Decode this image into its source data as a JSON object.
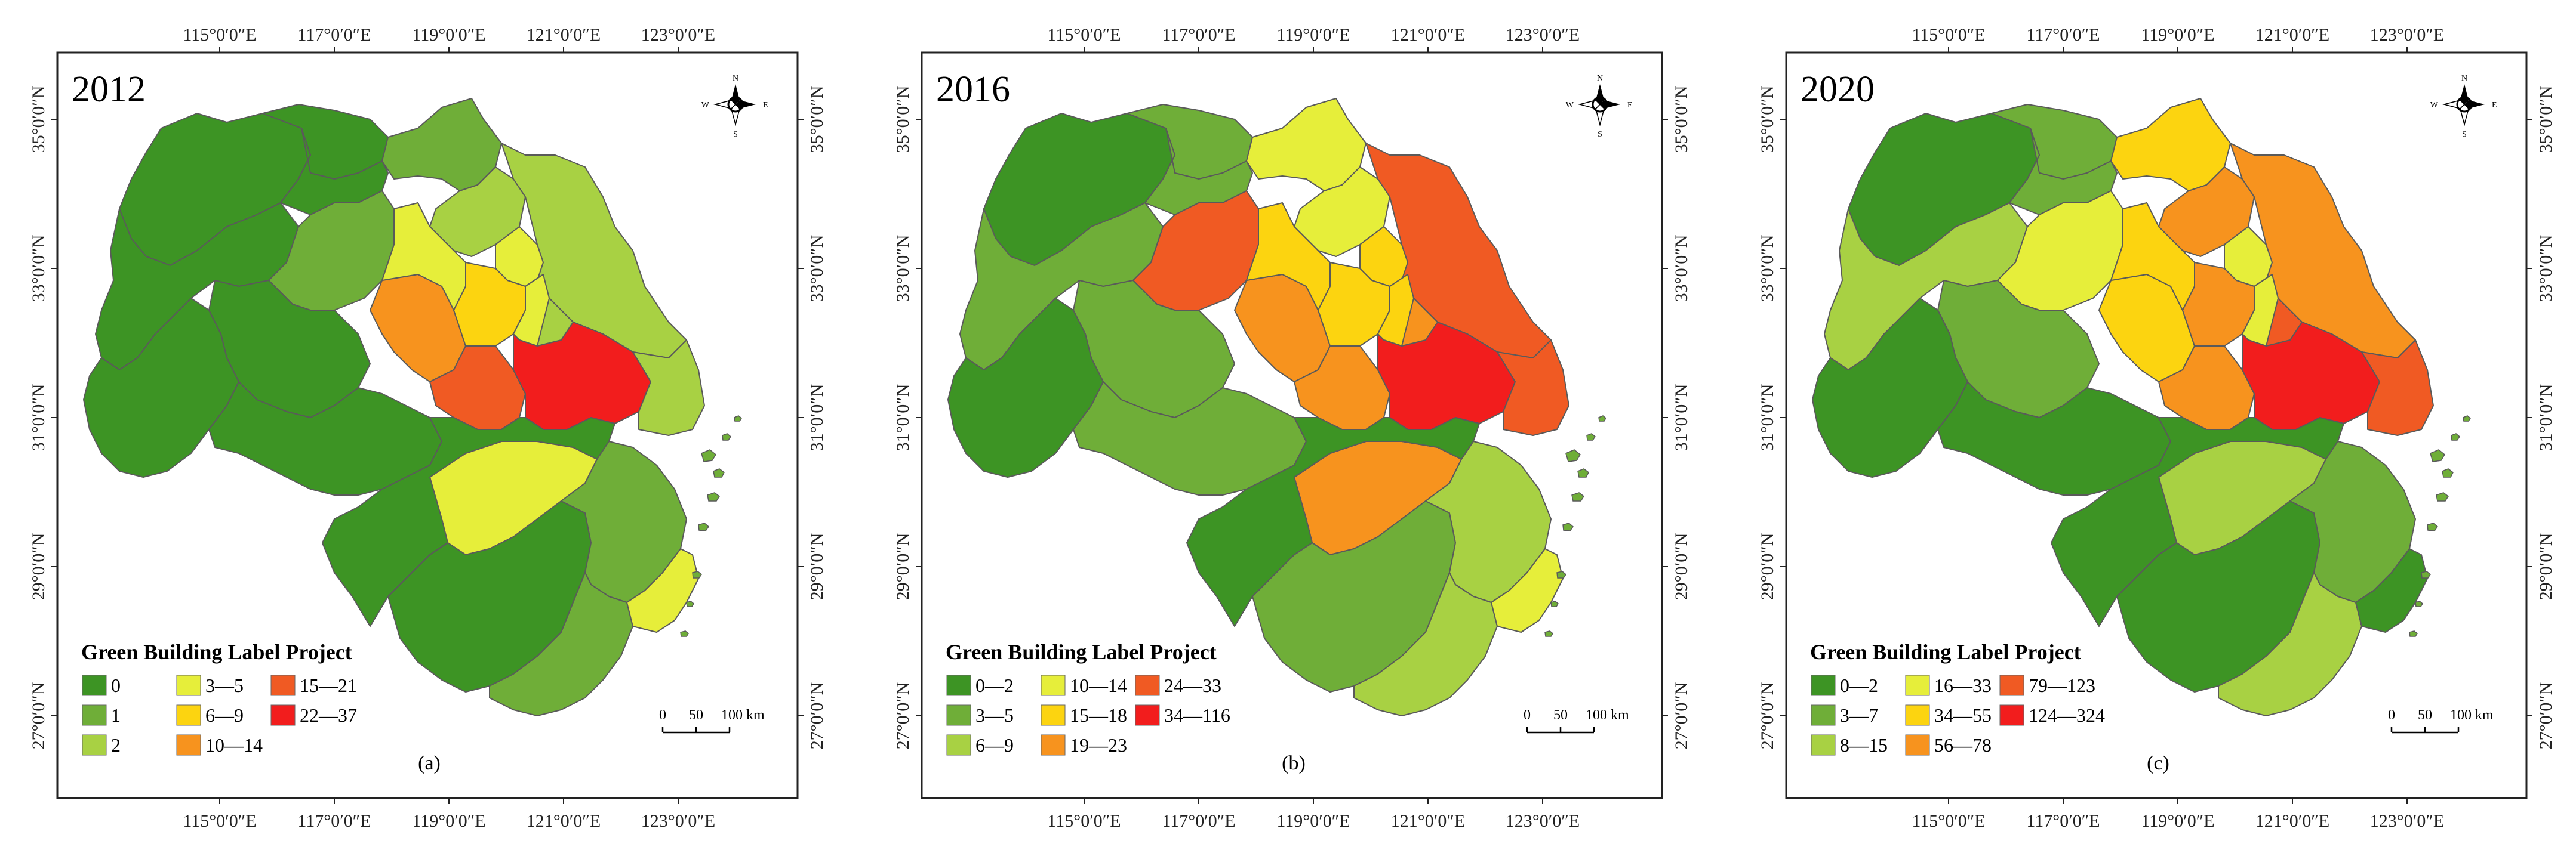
{
  "axes": {
    "lon_labels": [
      "115°0′0″E",
      "117°0′0″E",
      "119°0′0″E",
      "121°0′0″E",
      "123°0′0″E"
    ],
    "lat_labels": [
      "35°0′0″N",
      "33°0′0″N",
      "31°0′0″N",
      "29°0′0″N",
      "27°0′0″N"
    ]
  },
  "compass": {
    "n": "N",
    "s": "S",
    "w": "W",
    "e": "E"
  },
  "scale_bar": {
    "labels": [
      "0",
      "50",
      "100 km"
    ]
  },
  "legend_title": "Green Building Label Project",
  "colors": {
    "c1": "#3d9424",
    "c2": "#6fae38",
    "c3": "#a8d143",
    "c4": "#e6ee3a",
    "c5": "#fcd410",
    "c6": "#f7931e",
    "c7": "#f05a23",
    "c8": "#f21d1d"
  },
  "panels": [
    {
      "year": "2012",
      "label": "(a)",
      "legend": [
        {
          "label": "0",
          "color": "#3d9424"
        },
        {
          "label": "1",
          "color": "#6fae38"
        },
        {
          "label": "2",
          "color": "#a8d143"
        },
        {
          "label": "3—5",
          "color": "#e6ee3a"
        },
        {
          "label": "6—9",
          "color": "#fcd410"
        },
        {
          "label": "10—14",
          "color": "#f7931e"
        },
        {
          "label": "15—21",
          "color": "#f05a23"
        },
        {
          "label": "22—37",
          "color": "#f21d1d"
        }
      ]
    },
    {
      "year": "2016",
      "label": "(b)",
      "legend": [
        {
          "label": "0—2",
          "color": "#3d9424"
        },
        {
          "label": "3—5",
          "color": "#6fae38"
        },
        {
          "label": "6—9",
          "color": "#a8d143"
        },
        {
          "label": "10—14",
          "color": "#e6ee3a"
        },
        {
          "label": "15—18",
          "color": "#fcd410"
        },
        {
          "label": "19—23",
          "color": "#f7931e"
        },
        {
          "label": "24—33",
          "color": "#f05a23"
        },
        {
          "label": "34—116",
          "color": "#f21d1d"
        }
      ]
    },
    {
      "year": "2020",
      "label": "(c)",
      "legend": [
        {
          "label": "0—2",
          "color": "#3d9424"
        },
        {
          "label": "3—7",
          "color": "#6fae38"
        },
        {
          "label": "8—15",
          "color": "#a8d143"
        },
        {
          "label": "16—33",
          "color": "#e6ee3a"
        },
        {
          "label": "34—55",
          "color": "#fcd410"
        },
        {
          "label": "56—78",
          "color": "#f7931e"
        },
        {
          "label": "79—123",
          "color": "#f05a23"
        },
        {
          "label": "124—324",
          "color": "#f21d1d"
        }
      ]
    }
  ],
  "region_classes": {
    "2012": {
      "nw": 1,
      "wj": 1,
      "w2": 2,
      "w3": 1,
      "sw": 1,
      "s1": 1,
      "s2": 1,
      "se1": 2,
      "se2": 2,
      "se3": 4,
      "c1": 6,
      "c2": 5,
      "c3": 4,
      "c4": 4,
      "east1": 3,
      "east2": 3,
      "ec": 7,
      "ecore": 8,
      "n1": 2,
      "n2": 3,
      "n3": 4,
      "n4": 1,
      "ne": 3,
      "cn": 1,
      "lake": 4,
      "ms": 1
    },
    "2016": {
      "nw": 1,
      "wj": 2,
      "w2": 7,
      "w3": 2,
      "sw": 1,
      "s1": 1,
      "s2": 2,
      "se1": 3,
      "se2": 3,
      "se3": 4,
      "c1": 6,
      "c2": 5,
      "c3": 5,
      "c4": 5,
      "east1": 6,
      "east2": 7,
      "ec": 6,
      "ecore": 8,
      "n1": 4,
      "n2": 4,
      "n3": 5,
      "n4": 2,
      "ne": 7,
      "cn": 2,
      "lake": 6,
      "ms": 2
    },
    "2020": {
      "nw": 1,
      "wj": 3,
      "w2": 4,
      "w3": 2,
      "sw": 1,
      "s1": 1,
      "s2": 1,
      "se1": 2,
      "se2": 3,
      "se3": 1,
      "c1": 5,
      "c2": 6,
      "c3": 4,
      "c4": 5,
      "east1": 7,
      "east2": 7,
      "ec": 6,
      "ecore": 8,
      "n1": 5,
      "n2": 6,
      "n3": 4,
      "n4": 2,
      "ne": 6,
      "cn": 2,
      "lake": 3,
      "ms": 1
    }
  }
}
